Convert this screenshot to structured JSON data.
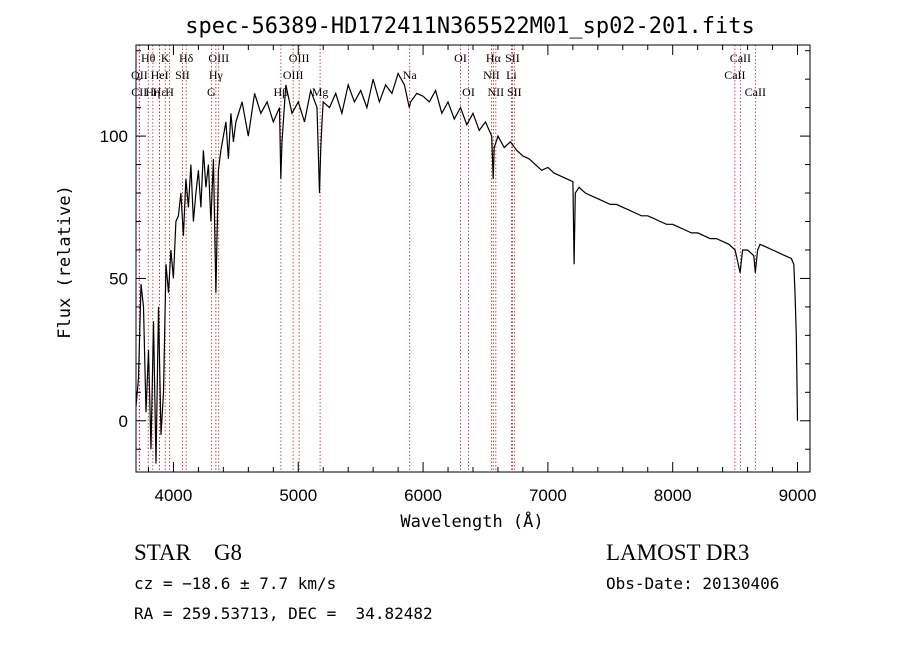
{
  "chart_data": {
    "type": "line",
    "title": "spec-56389-HD172411N365522M01_sp02-201.fits",
    "xlabel": "Wavelength (Å)",
    "ylabel": "Flux (relative)",
    "xlim": [
      3700,
      9100
    ],
    "ylim": [
      -18,
      132
    ],
    "xticks": [
      4000,
      5000,
      6000,
      7000,
      8000,
      9000
    ],
    "yticks": [
      0,
      50,
      100
    ],
    "x_minor_step": 200,
    "y_minor_step": 10,
    "grid": false,
    "series": [
      {
        "name": "spectrum",
        "x": [
          3700,
          3720,
          3740,
          3760,
          3780,
          3800,
          3820,
          3840,
          3860,
          3880,
          3900,
          3920,
          3940,
          3960,
          3980,
          4000,
          4020,
          4040,
          4060,
          4080,
          4100,
          4120,
          4140,
          4160,
          4180,
          4200,
          4220,
          4240,
          4260,
          4280,
          4300,
          4320,
          4340,
          4360,
          4380,
          4400,
          4420,
          4440,
          4460,
          4480,
          4500,
          4550,
          4600,
          4650,
          4700,
          4750,
          4800,
          4850,
          4860,
          4870,
          4900,
          4950,
          5000,
          5050,
          5100,
          5150,
          5170,
          5180,
          5190,
          5200,
          5250,
          5300,
          5350,
          5400,
          5450,
          5500,
          5550,
          5600,
          5650,
          5700,
          5750,
          5800,
          5850,
          5890,
          5900,
          5950,
          6000,
          6050,
          6100,
          6150,
          6200,
          6250,
          6300,
          6350,
          6400,
          6450,
          6500,
          6550,
          6562,
          6570,
          6600,
          6650,
          6700,
          6750,
          6800,
          6850,
          6900,
          6950,
          7000,
          7050,
          7100,
          7150,
          7200,
          7210,
          7220,
          7250,
          7300,
          7350,
          7400,
          7450,
          7500,
          7550,
          7600,
          7650,
          7700,
          7750,
          7800,
          7850,
          7900,
          7950,
          8000,
          8050,
          8100,
          8150,
          8200,
          8250,
          8300,
          8350,
          8400,
          8450,
          8500,
          8540,
          8560,
          8600,
          8650,
          8662,
          8680,
          8700,
          8750,
          8800,
          8850,
          8900,
          8950,
          8970,
          8980,
          8990,
          9000
        ],
        "y": [
          5,
          15,
          48,
          40,
          3,
          25,
          -10,
          35,
          -15,
          40,
          -5,
          10,
          55,
          45,
          60,
          50,
          70,
          72,
          80,
          65,
          85,
          75,
          90,
          70,
          80,
          88,
          75,
          95,
          82,
          90,
          70,
          92,
          45,
          88,
          95,
          100,
          105,
          92,
          108,
          98,
          105,
          112,
          100,
          115,
          108,
          112,
          105,
          110,
          85,
          98,
          118,
          108,
          112,
          105,
          116,
          110,
          80,
          95,
          105,
          112,
          110,
          115,
          108,
          118,
          112,
          116,
          110,
          120,
          112,
          118,
          115,
          122,
          118,
          110,
          112,
          115,
          114,
          112,
          116,
          108,
          112,
          106,
          110,
          104,
          108,
          102,
          105,
          100,
          85,
          96,
          100,
          96,
          98,
          95,
          93,
          92,
          90,
          88,
          89,
          87,
          86,
          85,
          84,
          55,
          80,
          82,
          80,
          79,
          78,
          77,
          76,
          76,
          75,
          74,
          73,
          72,
          72,
          71,
          70,
          69,
          69,
          68,
          67,
          66,
          66,
          65,
          64,
          64,
          63,
          62,
          60,
          52,
          60,
          60,
          58,
          52,
          60,
          62,
          61,
          60,
          59,
          58,
          57,
          55,
          45,
          30,
          0
        ]
      }
    ],
    "lines": [
      {
        "name": "Hθ",
        "x": 3798,
        "row": 0
      },
      {
        "name": "OII",
        "x": 3727,
        "row": 1
      },
      {
        "name": "CII",
        "x": 3726,
        "row": 2
      },
      {
        "name": "Hη",
        "x": 3835,
        "row": 2
      },
      {
        "name": "Hε",
        "x": 3889,
        "row": 2
      },
      {
        "name": "HeI",
        "x": 3889,
        "row": 1
      },
      {
        "name": "K",
        "x": 3934,
        "row": 0
      },
      {
        "name": "H",
        "x": 3969,
        "row": 2
      },
      {
        "name": "SII",
        "x": 4072,
        "row": 1
      },
      {
        "name": "Hδ",
        "x": 4102,
        "row": 0
      },
      {
        "name": "OIII",
        "x": 4363,
        "row": 0
      },
      {
        "name": "Hγ",
        "x": 4340,
        "row": 1
      },
      {
        "name": "G",
        "x": 4304,
        "row": 2
      },
      {
        "name": "OIII",
        "x": 5007,
        "row": 0
      },
      {
        "name": "OIII",
        "x": 4959,
        "row": 1
      },
      {
        "name": "Hβ",
        "x": 4861,
        "row": 2
      },
      {
        "name": "Mg",
        "x": 5175,
        "row": 2
      },
      {
        "name": "Na",
        "x": 5893,
        "row": 1
      },
      {
        "name": "OI",
        "x": 6300,
        "row": 0
      },
      {
        "name": "OI",
        "x": 6364,
        "row": 2
      },
      {
        "name": "Hα",
        "x": 6563,
        "row": 0
      },
      {
        "name": "SII",
        "x": 6716,
        "row": 0
      },
      {
        "name": "NII",
        "x": 6548,
        "row": 1
      },
      {
        "name": "Li",
        "x": 6708,
        "row": 1
      },
      {
        "name": "NII",
        "x": 6583,
        "row": 2
      },
      {
        "name": "SII",
        "x": 6731,
        "row": 2
      },
      {
        "name": "CaII",
        "x": 8542,
        "row": 0
      },
      {
        "name": "CaII",
        "x": 8498,
        "row": 1
      },
      {
        "name": "CaII",
        "x": 8662,
        "row": 2
      }
    ]
  },
  "info": {
    "object_line": "STAR    G8",
    "survey": "LAMOST DR3",
    "cz": "cz = −18.6 ± 7.7 km/s",
    "obs_date": "Obs-Date: 20130406",
    "coords": "RA = 259.53713, DEC =  34.82482"
  }
}
